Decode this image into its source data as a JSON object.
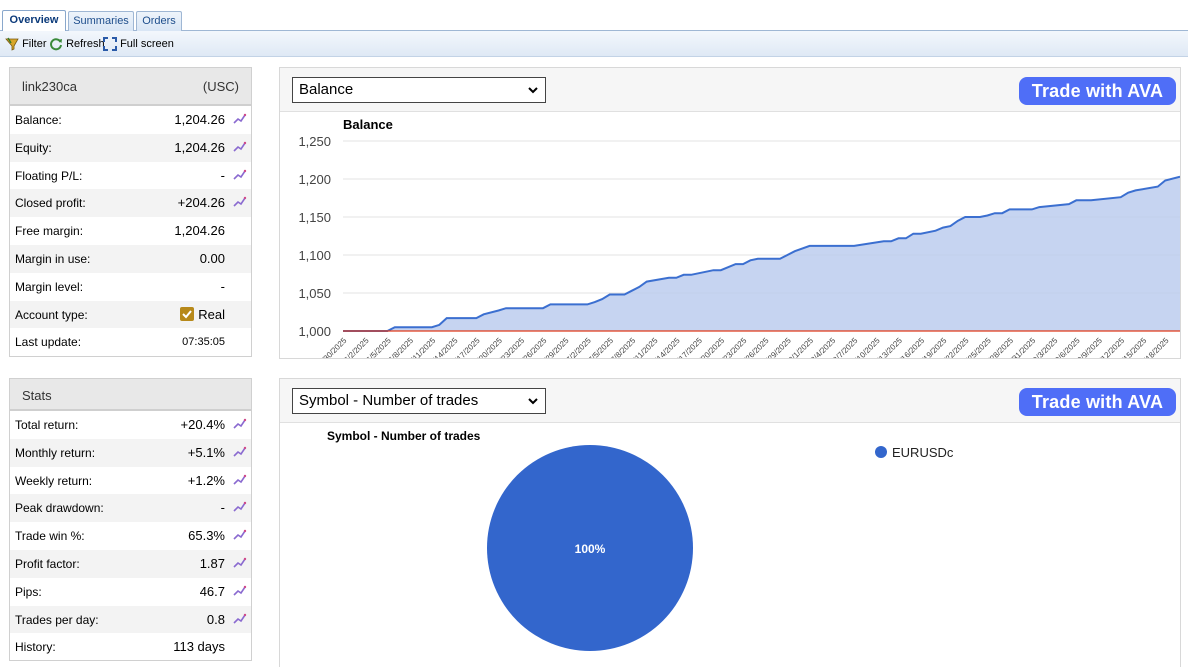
{
  "tabs": [
    {
      "label": "Overview",
      "active": true
    },
    {
      "label": "Summaries",
      "active": false
    },
    {
      "label": "Orders",
      "active": false
    }
  ],
  "toolbar": {
    "filter": "Filter",
    "refresh": "Refresh",
    "fullscreen": "Full screen"
  },
  "account": {
    "name": "link230ca",
    "currency": "(USC)",
    "rows": [
      {
        "label": "Balance:",
        "value": "1,204.26",
        "icon": true
      },
      {
        "label": "Equity:",
        "value": "1,204.26",
        "icon": true
      },
      {
        "label": "Floating P/L:",
        "value": "-",
        "icon": true
      },
      {
        "label": "Closed profit:",
        "value": "+204.26",
        "icon": true
      },
      {
        "label": "Free margin:",
        "value": "1,204.26",
        "icon": false
      },
      {
        "label": "Margin in use:",
        "value": "0.00",
        "icon": false
      },
      {
        "label": "Margin level:",
        "value": "-",
        "icon": false
      },
      {
        "label": "Account type:",
        "value": "Real",
        "icon": false
      },
      {
        "label": "Last update:",
        "value": "07:35:05",
        "icon": false
      }
    ]
  },
  "stats": {
    "title": "Stats",
    "rows": [
      {
        "label": "Total return:",
        "value": "+20.4%"
      },
      {
        "label": "Monthly return:",
        "value": "+5.1%"
      },
      {
        "label": "Weekly return:",
        "value": "+1.2%"
      },
      {
        "label": "Peak drawdown:",
        "value": "-"
      },
      {
        "label": "Trade win %:",
        "value": "65.3%"
      },
      {
        "label": "Profit factor:",
        "value": "1.87"
      },
      {
        "label": "Pips:",
        "value": "46.7"
      },
      {
        "label": "Trades per day:",
        "value": "0.8"
      },
      {
        "label": "History:",
        "value": "113 days"
      }
    ]
  },
  "balance_panel": {
    "select_value": "Balance",
    "cta": "Trade with AVA"
  },
  "symbol_panel": {
    "select_value": "Symbol - Number of trades",
    "cta": "Trade with AVA"
  },
  "colors": {
    "accent": "#4f6ef7",
    "line": "#3b6fd0",
    "fill": "#b8c9ee",
    "baseline": "#e03a1a",
    "pie": "#3366cc"
  },
  "chart_data": [
    {
      "type": "area",
      "title": "Balance",
      "x_tick_labels": [
        "5/30/2025",
        "6/2/2025",
        "6/5/2025",
        "6/8/2025",
        "6/11/2025",
        "6/14/2025",
        "6/17/2025",
        "6/20/2025",
        "6/23/2025",
        "6/26/2025",
        "6/29/2025",
        "7/2/2025",
        "7/5/2025",
        "7/8/2025",
        "7/11/2025",
        "7/14/2025",
        "7/17/2025",
        "7/20/2025",
        "7/23/2025",
        "7/26/2025",
        "7/29/2025",
        "8/1/2025",
        "8/4/2025",
        "8/7/2025",
        "8/10/2025",
        "8/13/2025",
        "8/16/2025",
        "8/19/2025",
        "8/22/2025",
        "8/25/2025",
        "8/28/2025",
        "8/31/2025",
        "9/3/2025",
        "9/6/2025",
        "9/9/2025",
        "9/12/2025",
        "9/15/2025",
        "9/18/2025"
      ],
      "y_ticks": [
        "1,000",
        "1,050",
        "1,100",
        "1,150",
        "1,200",
        "1,250"
      ],
      "ylim": [
        1000,
        1250
      ],
      "xlim": [
        "5/30/2025",
        "9/20/2025"
      ],
      "x": [
        "5/30/2025",
        "6/2/2025",
        "6/5/2025",
        "6/6/2025",
        "6/8/2025",
        "6/11/2025",
        "6/12/2025",
        "6/13/2025",
        "6/17/2025",
        "6/18/2025",
        "6/20/2025",
        "6/21/2025",
        "6/26/2025",
        "6/27/2025",
        "7/2/2025",
        "7/3/2025",
        "7/4/2025",
        "7/5/2025",
        "7/7/2025",
        "7/8/2025",
        "7/9/2025",
        "7/10/2025",
        "7/13/2025",
        "7/14/2025",
        "7/15/2025",
        "7/16/2025",
        "7/19/2025",
        "7/20/2025",
        "7/22/2025",
        "7/23/2025",
        "7/24/2025",
        "7/25/2025",
        "7/28/2025",
        "7/29/2025",
        "7/30/2025",
        "8/1/2025",
        "8/6/2025",
        "8/7/2025",
        "8/11/2025",
        "8/12/2025",
        "8/13/2025",
        "8/14/2025",
        "8/15/2025",
        "8/16/2025",
        "8/18/2025",
        "8/19/2025",
        "8/20/2025",
        "8/21/2025",
        "8/22/2025",
        "8/24/2025",
        "8/25/2025",
        "8/26/2025",
        "8/27/2025",
        "8/28/2025",
        "8/31/2025",
        "9/1/2025",
        "9/5/2025",
        "9/6/2025",
        "9/7/2025",
        "9/8/2025",
        "9/12/2025",
        "9/13/2025",
        "9/14/2025",
        "9/17/2025",
        "9/18/2025",
        "9/20/2025"
      ],
      "y": [
        1000,
        1000,
        1000,
        1005,
        1005,
        1005,
        1008,
        1017,
        1017,
        1022,
        1027,
        1030,
        1030,
        1035,
        1035,
        1038,
        1042,
        1048,
        1048,
        1053,
        1058,
        1065,
        1070,
        1070,
        1074,
        1074,
        1080,
        1080,
        1088,
        1088,
        1093,
        1095,
        1095,
        1100,
        1105,
        1112,
        1112,
        1112,
        1118,
        1118,
        1122,
        1122,
        1128,
        1128,
        1132,
        1136,
        1138,
        1145,
        1150,
        1150,
        1152,
        1155,
        1155,
        1160,
        1160,
        1163,
        1167,
        1172,
        1172,
        1172,
        1176,
        1182,
        1185,
        1190,
        1198,
        1203
      ],
      "baseline": 1000,
      "grid": true
    },
    {
      "type": "pie",
      "title": "Symbol - Number of trades",
      "labels": [
        "EURUSDc"
      ],
      "values": [
        100
      ],
      "data_labels": [
        "100%"
      ],
      "legend": "top-right"
    }
  ]
}
